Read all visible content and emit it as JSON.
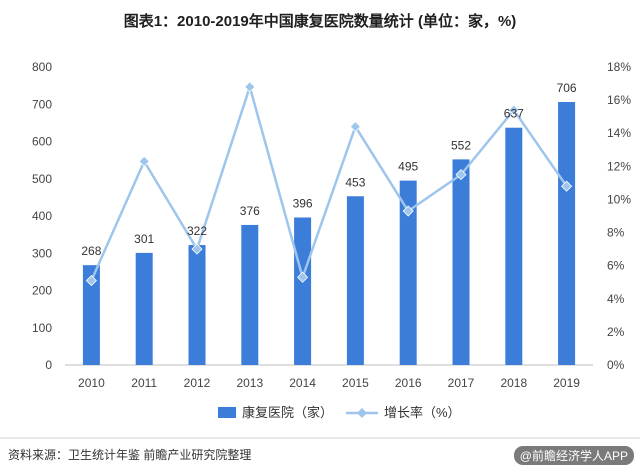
{
  "title": "图表1：2010-2019年中国康复医院数量统计 (单位：家，%)",
  "source": "资料来源：卫生统计年鉴 前瞻产业研究院整理",
  "watermark_badge": "@前瞻经济学人APP",
  "colors": {
    "bar": "#3b7dd8",
    "line": "#9ec5ec",
    "axis": "#bfbfbf",
    "grid": "#e8e8e8"
  },
  "chart_data": {
    "type": "bar+line",
    "categories": [
      "2010",
      "2011",
      "2012",
      "2013",
      "2014",
      "2015",
      "2016",
      "2017",
      "2018",
      "2019"
    ],
    "series": [
      {
        "name": "康复医院（家）",
        "type": "bar",
        "axis": "left",
        "values": [
          268,
          301,
          322,
          376,
          396,
          453,
          495,
          552,
          637,
          706
        ]
      },
      {
        "name": "增长率（%）",
        "type": "line",
        "axis": "right",
        "values": [
          5.1,
          12.3,
          7.0,
          16.8,
          5.3,
          14.4,
          9.3,
          11.5,
          15.4,
          10.8
        ]
      }
    ],
    "y_left": {
      "min": 0,
      "max": 800,
      "step": 100,
      "ticks": [
        "0",
        "100",
        "200",
        "300",
        "400",
        "500",
        "600",
        "700",
        "800"
      ]
    },
    "y_right": {
      "min": 0,
      "max": 18,
      "step": 2,
      "ticks": [
        "0%",
        "2%",
        "4%",
        "6%",
        "8%",
        "10%",
        "12%",
        "14%",
        "16%",
        "18%"
      ]
    },
    "data_labels": [
      "268",
      "301",
      "322",
      "376",
      "396",
      "453",
      "495",
      "552",
      "637",
      "706"
    ],
    "legend": {
      "position": "bottom",
      "items": [
        "康复医院（家）",
        "增长率（%）"
      ]
    },
    "grid": false
  }
}
